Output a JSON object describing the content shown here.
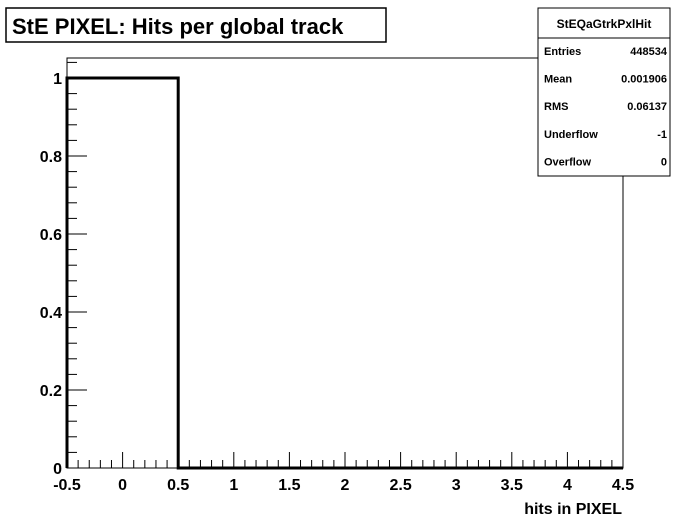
{
  "chart_data": {
    "type": "bar",
    "title": "StE PIXEL: Hits per global track",
    "xlabel": "hits in PIXEL",
    "ylabel": "",
    "xlim": [
      -0.5,
      4.5
    ],
    "ylim": [
      0,
      1.05
    ],
    "x_tick_labels": [
      "-0.5",
      "0",
      "0.5",
      "1",
      "1.5",
      "2",
      "2.5",
      "3",
      "3.5",
      "4",
      "4.5"
    ],
    "y_tick_labels": [
      "0",
      "0.2",
      "0.4",
      "0.6",
      "0.8",
      "1"
    ],
    "bins": [
      {
        "low": -0.5,
        "high": 0.5,
        "value": 1.0
      },
      {
        "low": 0.5,
        "high": 1.5,
        "value": 0.0
      },
      {
        "low": 1.5,
        "high": 2.5,
        "value": 0.0
      },
      {
        "low": 2.5,
        "high": 3.5,
        "value": 0.0
      },
      {
        "low": 3.5,
        "high": 4.5,
        "value": 0.0
      }
    ],
    "grid": false,
    "legend": "none"
  },
  "stats_box": {
    "name": "StEQaGtrkPxlHit",
    "rows": [
      {
        "label": "Entries",
        "value": "448534"
      },
      {
        "label": "Mean",
        "value": "0.001906"
      },
      {
        "label": "RMS",
        "value": "0.06137"
      },
      {
        "label": "Underflow",
        "value": "-1"
      },
      {
        "label": "Overflow",
        "value": "0"
      }
    ]
  }
}
